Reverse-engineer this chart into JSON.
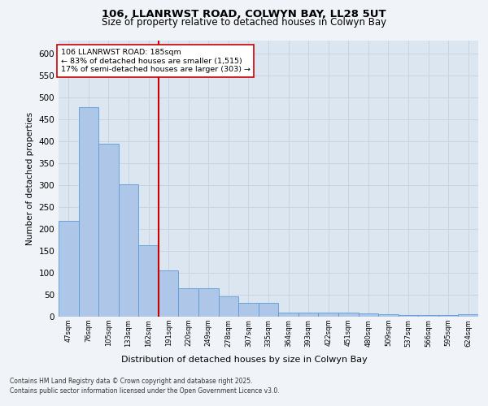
{
  "title1": "106, LLANRWST ROAD, COLWYN BAY, LL28 5UT",
  "title2": "Size of property relative to detached houses in Colwyn Bay",
  "xlabel": "Distribution of detached houses by size in Colwyn Bay",
  "ylabel": "Number of detached properties",
  "categories": [
    "47sqm",
    "76sqm",
    "105sqm",
    "133sqm",
    "162sqm",
    "191sqm",
    "220sqm",
    "249sqm",
    "278sqm",
    "307sqm",
    "335sqm",
    "364sqm",
    "393sqm",
    "422sqm",
    "451sqm",
    "480sqm",
    "509sqm",
    "537sqm",
    "566sqm",
    "595sqm",
    "624sqm"
  ],
  "values": [
    219,
    478,
    395,
    302,
    163,
    105,
    65,
    65,
    47,
    31,
    31,
    9,
    9,
    9,
    9,
    8,
    5,
    4,
    4,
    4,
    5
  ],
  "bar_color": "#aec6e8",
  "bar_edge_color": "#5b9bd5",
  "grid_color": "#c8d4e3",
  "vline_x_index": 5,
  "vline_color": "#cc0000",
  "annotation_text": "106 LLANRWST ROAD: 185sqm\n← 83% of detached houses are smaller (1,515)\n17% of semi-detached houses are larger (303) →",
  "annotation_box_color": "#ffffff",
  "annotation_box_edge": "#cc0000",
  "footer1": "Contains HM Land Registry data © Crown copyright and database right 2025.",
  "footer2": "Contains public sector information licensed under the Open Government Licence v3.0.",
  "ylim": [
    0,
    630
  ],
  "yticks": [
    0,
    50,
    100,
    150,
    200,
    250,
    300,
    350,
    400,
    450,
    500,
    550,
    600
  ],
  "fig_background": "#f0f4f8",
  "plot_background": "#dce6f0"
}
